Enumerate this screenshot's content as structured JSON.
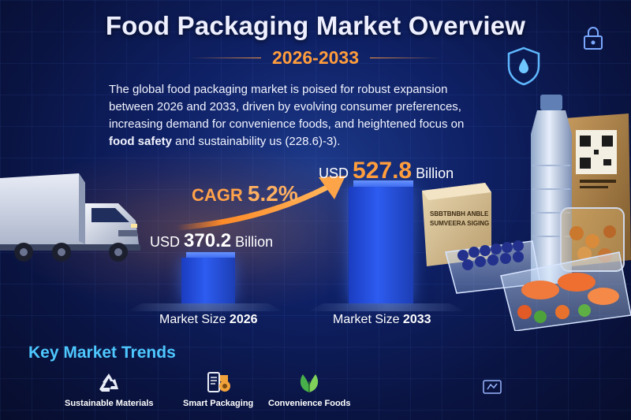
{
  "header": {
    "title": "Food Packaging Market Overview",
    "subtitle": "2026-2033"
  },
  "intro": {
    "text_part1": "The global food packaging market is poised for robust expansion between 2026 and 2033, driven by evolving consumer preferences, increasing demand for convenience foods, and heightened focus on ",
    "text_bold": "food safety",
    "text_part2": " and sustainability us (228.6)-3)."
  },
  "market": {
    "cagr_label": "CAGR",
    "cagr_value": "5.2%",
    "left": {
      "currency": "USD",
      "value": "370.2",
      "unit": "Billion",
      "label": "Market Size",
      "year": "2026"
    },
    "right": {
      "currency": "USD",
      "value": "527.8",
      "unit": "Billion",
      "label": "Market Size",
      "year": "2033"
    }
  },
  "products": {
    "box_label_line1": "SBBTBNBH ANBLE",
    "box_label_line2": "SUMVEERA SIGING"
  },
  "trends": {
    "title": "Key Market Trends",
    "items": [
      {
        "label": "Sustainable Materials",
        "icon": "recycle-icon"
      },
      {
        "label": "Smart Packaging",
        "icon": "smart-packaging-icon"
      },
      {
        "label": "Convenience Foods",
        "icon": "leaf-icon"
      }
    ]
  },
  "colors": {
    "accent_orange": "#ff9d3c",
    "accent_cyan": "#4ec8ff",
    "bar_blue": "#2d5cf0"
  }
}
